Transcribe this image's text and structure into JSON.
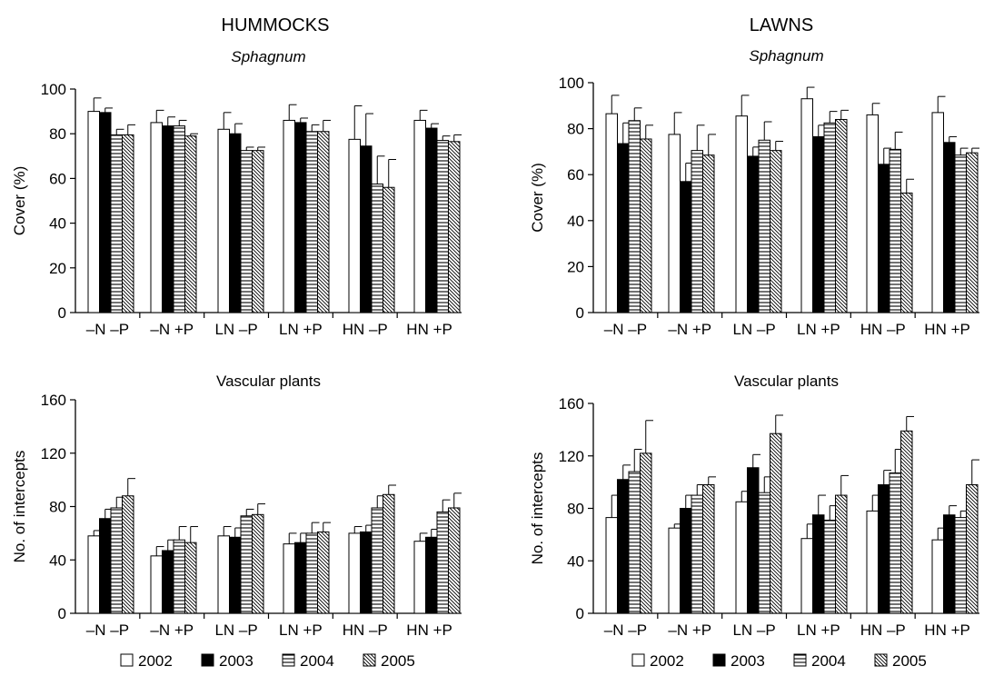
{
  "headers": {
    "hummocks": "HUMMOCKS",
    "lawns": "LAWNS"
  },
  "legend": [
    {
      "label": "2002",
      "pattern": "open"
    },
    {
      "label": "2003",
      "pattern": "solid"
    },
    {
      "label": "2004",
      "pattern": "horizontal"
    },
    {
      "label": "2005",
      "pattern": "diagonal"
    }
  ],
  "colors": {
    "solid": "#000000",
    "outline": "#000000",
    "background": "#ffffff"
  },
  "chart_data": [
    {
      "type": "bar",
      "group": "HUMMOCKS",
      "subtitle": "Sphagnum",
      "subtitle_italic": true,
      "ylabel": "Cover (%)",
      "ylim": [
        0,
        100
      ],
      "yticks": [
        0,
        20,
        40,
        60,
        80,
        100
      ],
      "categories": [
        "–N –P",
        "–N +P",
        "LN –P",
        "LN +P",
        "HN –P",
        "HN +P"
      ],
      "series": [
        {
          "name": "2002",
          "values": [
            90,
            85,
            82,
            86,
            77.5,
            86
          ],
          "errors": [
            6,
            5.5,
            7.5,
            7,
            15,
            4.5
          ]
        },
        {
          "name": "2003",
          "values": [
            89.5,
            83.5,
            80,
            85,
            74.5,
            82.5
          ],
          "errors": [
            2,
            4,
            4.5,
            2,
            14.5,
            2
          ]
        },
        {
          "name": "2004",
          "values": [
            79.5,
            83.5,
            72.5,
            81,
            57.5,
            77
          ],
          "errors": [
            2.5,
            2.5,
            1.5,
            3,
            12.5,
            2
          ]
        },
        {
          "name": "2005",
          "values": [
            79.5,
            79,
            72.5,
            81,
            56,
            76.5
          ],
          "errors": [
            4.5,
            1,
            1.5,
            5,
            12.5,
            3
          ]
        }
      ]
    },
    {
      "type": "bar",
      "group": "LAWNS",
      "subtitle": "Sphagnum",
      "subtitle_italic": true,
      "ylabel": "Cover (%)",
      "ylim": [
        0,
        100
      ],
      "yticks": [
        0,
        20,
        40,
        60,
        80,
        100
      ],
      "categories": [
        "–N –P",
        "–N +P",
        "LN –P",
        "LN +P",
        "HN –P",
        "HN +P"
      ],
      "series": [
        {
          "name": "2002",
          "values": [
            86.5,
            77.5,
            85.5,
            93,
            86,
            87
          ],
          "errors": [
            8,
            9.5,
            9,
            5,
            5,
            7
          ]
        },
        {
          "name": "2003",
          "values": [
            73.5,
            57,
            68,
            76.5,
            64.5,
            74
          ],
          "errors": [
            9,
            8,
            4,
            5,
            7,
            2.5
          ]
        },
        {
          "name": "2004",
          "values": [
            83.5,
            70.5,
            75,
            82.5,
            71,
            68.5
          ],
          "errors": [
            5.5,
            11,
            8,
            5,
            7.5,
            3
          ]
        },
        {
          "name": "2005",
          "values": [
            75.5,
            68.5,
            70.5,
            84,
            52,
            69.5
          ],
          "errors": [
            6,
            9,
            4,
            4,
            6,
            2
          ]
        }
      ]
    },
    {
      "type": "bar",
      "group": "HUMMOCKS",
      "subtitle": "Vascular plants",
      "subtitle_italic": false,
      "ylabel": "No. of intercepts",
      "ylim": [
        0,
        160
      ],
      "yticks": [
        0,
        40,
        80,
        120,
        160
      ],
      "categories": [
        "–N –P",
        "–N +P",
        "LN –P",
        "LN +P",
        "HN –P",
        "HN +P"
      ],
      "series": [
        {
          "name": "2002",
          "values": [
            58,
            43,
            58,
            52,
            60,
            54
          ],
          "errors": [
            4,
            7,
            7,
            8,
            5,
            6
          ]
        },
        {
          "name": "2003",
          "values": [
            71,
            47,
            57,
            53,
            61,
            57
          ],
          "errors": [
            7,
            8,
            7,
            7,
            5,
            6
          ]
        },
        {
          "name": "2004",
          "values": [
            79,
            55,
            73,
            60,
            79,
            76
          ],
          "errors": [
            8,
            10,
            5,
            8,
            9,
            9
          ]
        },
        {
          "name": "2005",
          "values": [
            88,
            53,
            74,
            61,
            89,
            79
          ],
          "errors": [
            13,
            12,
            8,
            7,
            7,
            11
          ]
        }
      ]
    },
    {
      "type": "bar",
      "group": "LAWNS",
      "subtitle": "Vascular plants",
      "subtitle_italic": false,
      "ylabel": "No. of intercepts",
      "ylim": [
        0,
        160
      ],
      "yticks": [
        0,
        40,
        80,
        120,
        160
      ],
      "categories": [
        "–N –P",
        "–N +P",
        "LN –P",
        "LN +P",
        "HN –P",
        "HN +P"
      ],
      "series": [
        {
          "name": "2002",
          "values": [
            73,
            65,
            85,
            57,
            78,
            56
          ],
          "errors": [
            17,
            3,
            8,
            11,
            12,
            9
          ]
        },
        {
          "name": "2003",
          "values": [
            102,
            80,
            111,
            75,
            98,
            75
          ],
          "errors": [
            11,
            10,
            10,
            15,
            11,
            7
          ]
        },
        {
          "name": "2004",
          "values": [
            108,
            90,
            92,
            71,
            107,
            73
          ],
          "errors": [
            17,
            8,
            12,
            11,
            18,
            5
          ]
        },
        {
          "name": "2005",
          "values": [
            122,
            98,
            137,
            90,
            139,
            98
          ],
          "errors": [
            25,
            6,
            14,
            15,
            11,
            19
          ]
        }
      ]
    }
  ]
}
